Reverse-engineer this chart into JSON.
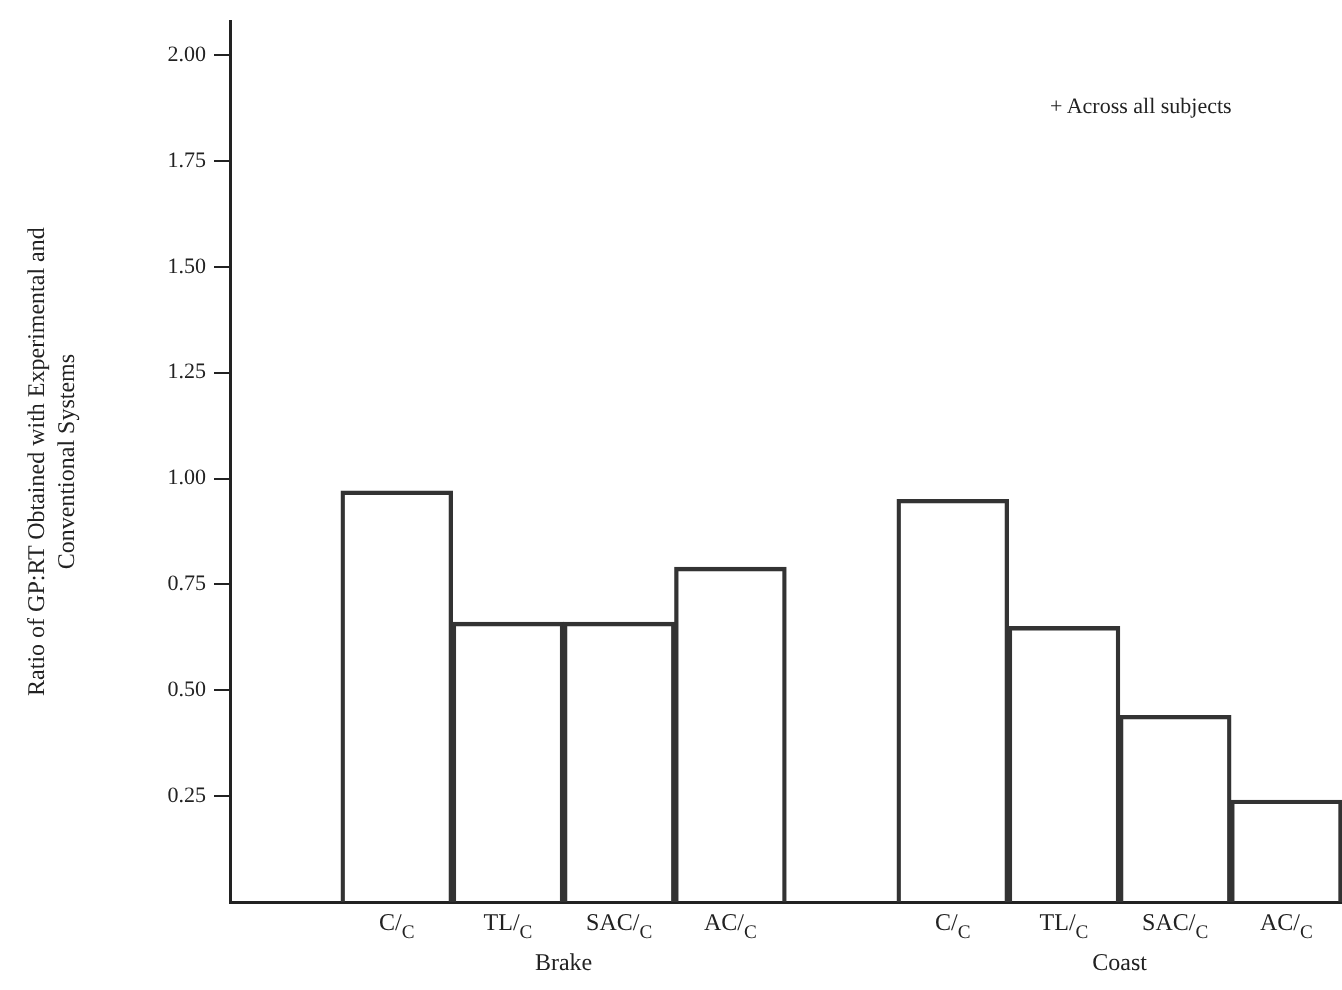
{
  "chart_data": {
    "type": "bar",
    "ylabel": "Ratio of GP:RT Obtained with Experimental and\nConventional Systems",
    "categories": [
      null,
      "C/$_{C}$",
      "TL/$_{C}$",
      "SAC/$_{C}$",
      "AC/$_{C}$",
      null,
      "C/$_{C}$",
      "TL/$_{C}$",
      "SAC/$_{C}$",
      "AC/$_{C}$"
    ],
    "values": [
      null,
      0.97,
      0.66,
      0.66,
      0.79,
      null,
      0.95,
      0.65,
      0.44,
      0.24
    ],
    "color": "#333333",
    "ylim": [
      0,
      2.08
    ],
    "yticks": [
      0.25,
      {
        "value": 0.5,
        "label": "0.50"
      },
      0.75,
      {
        "value": 1,
        "label": "1.00"
      },
      1.25,
      {
        "value": 1.5,
        "label": "1.50"
      },
      1.75,
      {
        "value": 2,
        "label": "2.00"
      }
    ],
    "annotations": [
      "+ Across all subjects",
      "Brake",
      "Coast"
    ],
    "grid": false,
    "legend": false
  }
}
